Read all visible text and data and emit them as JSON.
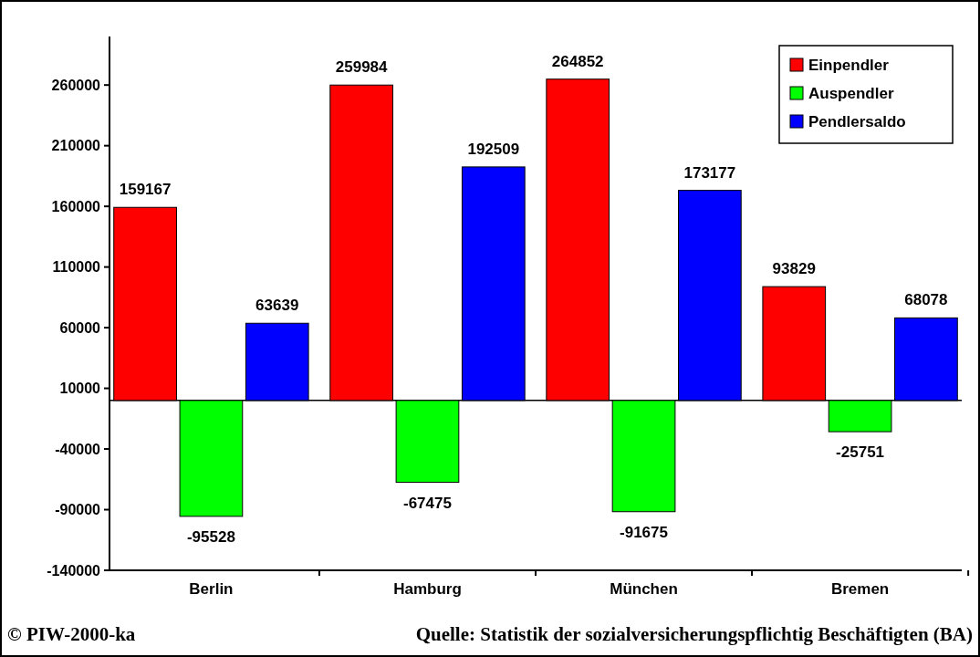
{
  "chart_data": {
    "type": "bar",
    "categories": [
      "Berlin",
      "Hamburg",
      "München",
      "Bremen"
    ],
    "series": [
      {
        "name": "Einpendler",
        "color": "#ff0000",
        "values": [
          159167,
          259984,
          264852,
          93829
        ]
      },
      {
        "name": "Auspendler",
        "color": "#00ff00",
        "values": [
          -95528,
          -67475,
          -91675,
          -25751
        ]
      },
      {
        "name": "Pendlersaldo",
        "color": "#0000ff",
        "values": [
          63639,
          192509,
          173177,
          68078
        ]
      }
    ],
    "ylim": [
      -140000,
      300000
    ],
    "yticks": [
      -140000,
      -90000,
      -40000,
      10000,
      60000,
      110000,
      160000,
      210000,
      260000
    ],
    "data_labels": true,
    "legend": "top right",
    "grid": false,
    "annotations": [
      "© PIW-2000-ka",
      "Quelle: Statistik der sozialversicherungspflichtig Beschäftigten (BA)"
    ]
  }
}
